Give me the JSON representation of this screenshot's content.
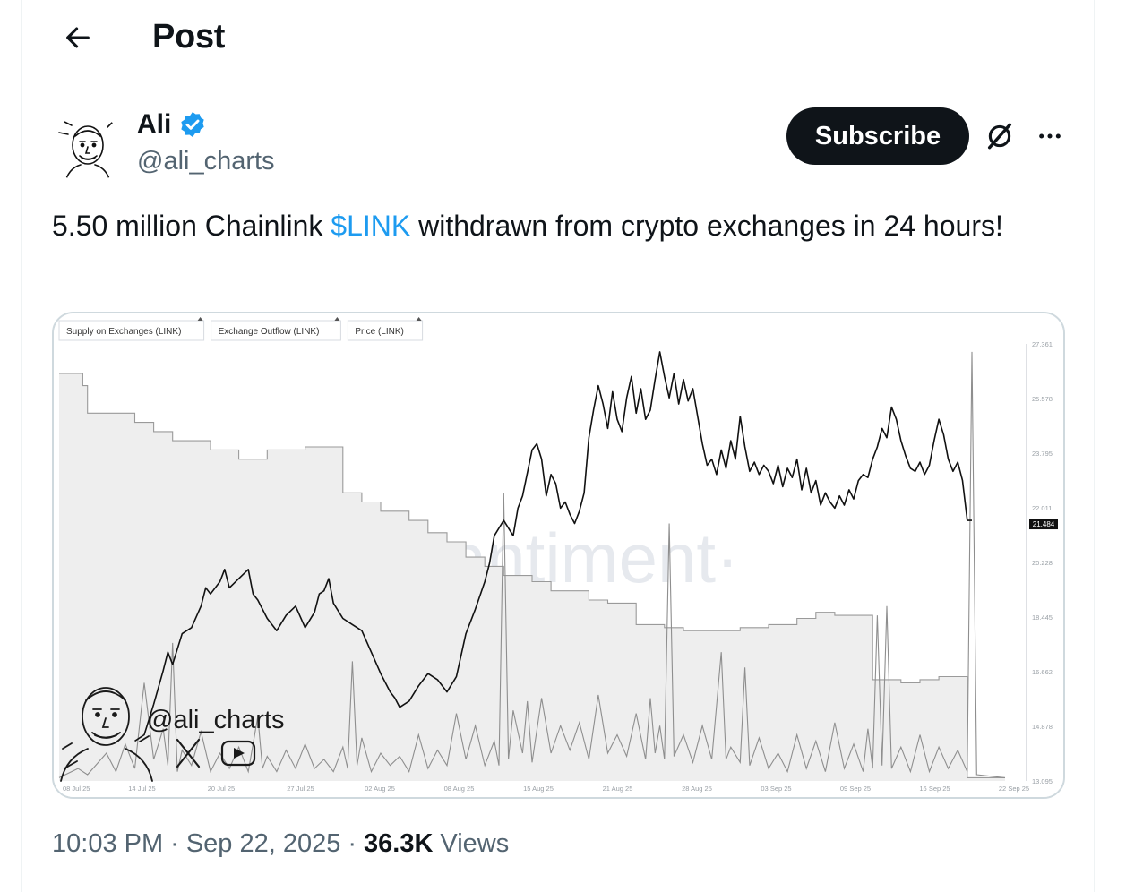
{
  "header": {
    "title": "Post",
    "back_icon": "arrow-left-icon"
  },
  "author": {
    "name": "Ali",
    "handle": "@ali_charts",
    "verified": true,
    "verified_color": "#1d9bf0",
    "subscribe_label": "Subscribe"
  },
  "tweet": {
    "text_before": "5.50 million Chainlink ",
    "cashtag": "$LINK",
    "text_after": " withdrawn from crypto exchanges in 24 hours!"
  },
  "meta": {
    "time": "10:03 PM",
    "date": "Sep 22, 2025",
    "views_count": "36.3K",
    "views_label": "Views"
  },
  "colors": {
    "accent": "#1d9bf0",
    "text": "#0f1419",
    "muted": "#536471",
    "border": "#cfd9de"
  },
  "chart_data": {
    "type": "line",
    "legend": [
      "Supply on Exchanges (LINK)",
      "Exchange Outflow (LINK)",
      "Price (LINK)"
    ],
    "watermark": "·santiment·",
    "overlay_handle": "@ali_charts",
    "x_ticks": [
      "08 Jul 25",
      "14 Jul 25",
      "20 Jul 25",
      "27 Jul 25",
      "02 Aug 25",
      "08 Aug 25",
      "15 Aug 25",
      "21 Aug 25",
      "28 Aug 25",
      "03 Sep 25",
      "09 Sep 25",
      "16 Sep 25",
      "22 Sep 25"
    ],
    "y_ticks": [
      "27.361",
      "25.578",
      "23.795",
      "22.011",
      "20.228",
      "18.445",
      "16.662",
      "14.878",
      "13.095"
    ],
    "ylim": [
      13.095,
      27.361
    ],
    "current_price": "21.484",
    "price": [
      [
        0.08,
        14.4
      ],
      [
        0.09,
        14.6
      ],
      [
        0.1,
        15.6
      ],
      [
        0.11,
        16.7
      ],
      [
        0.115,
        17.3
      ],
      [
        0.12,
        16.9
      ],
      [
        0.13,
        17.9
      ],
      [
        0.14,
        18.1
      ],
      [
        0.15,
        18.8
      ],
      [
        0.155,
        19.4
      ],
      [
        0.16,
        19.2
      ],
      [
        0.17,
        19.6
      ],
      [
        0.175,
        20.0
      ],
      [
        0.18,
        19.4
      ],
      [
        0.19,
        19.7
      ],
      [
        0.2,
        20.0
      ],
      [
        0.205,
        19.2
      ],
      [
        0.21,
        19.0
      ],
      [
        0.22,
        18.4
      ],
      [
        0.23,
        18.0
      ],
      [
        0.24,
        18.5
      ],
      [
        0.25,
        18.8
      ],
      [
        0.26,
        18.1
      ],
      [
        0.27,
        18.6
      ],
      [
        0.275,
        19.2
      ],
      [
        0.28,
        19.3
      ],
      [
        0.285,
        19.7
      ],
      [
        0.29,
        18.9
      ],
      [
        0.3,
        18.4
      ],
      [
        0.31,
        18.2
      ],
      [
        0.32,
        18.0
      ],
      [
        0.33,
        17.3
      ],
      [
        0.34,
        16.6
      ],
      [
        0.35,
        16.0
      ],
      [
        0.355,
        15.8
      ],
      [
        0.36,
        15.5
      ],
      [
        0.37,
        15.7
      ],
      [
        0.38,
        16.2
      ],
      [
        0.39,
        16.6
      ],
      [
        0.4,
        16.4
      ],
      [
        0.41,
        16.0
      ],
      [
        0.42,
        16.5
      ],
      [
        0.425,
        17.2
      ],
      [
        0.43,
        17.9
      ],
      [
        0.44,
        18.7
      ],
      [
        0.45,
        19.6
      ],
      [
        0.455,
        20.2
      ],
      [
        0.46,
        21.1
      ],
      [
        0.47,
        21.6
      ],
      [
        0.48,
        21.1
      ],
      [
        0.485,
        22.0
      ],
      [
        0.49,
        22.4
      ],
      [
        0.5,
        23.9
      ],
      [
        0.505,
        24.1
      ],
      [
        0.51,
        23.6
      ],
      [
        0.515,
        22.4
      ],
      [
        0.52,
        23.1
      ],
      [
        0.525,
        22.8
      ],
      [
        0.53,
        22.0
      ],
      [
        0.535,
        22.2
      ],
      [
        0.54,
        21.8
      ],
      [
        0.545,
        21.5
      ],
      [
        0.55,
        21.9
      ],
      [
        0.555,
        22.5
      ],
      [
        0.56,
        24.3
      ],
      [
        0.565,
        25.2
      ],
      [
        0.57,
        26.0
      ],
      [
        0.575,
        25.4
      ],
      [
        0.58,
        24.6
      ],
      [
        0.585,
        25.8
      ],
      [
        0.59,
        24.9
      ],
      [
        0.595,
        24.5
      ],
      [
        0.6,
        25.6
      ],
      [
        0.605,
        26.3
      ],
      [
        0.61,
        25.1
      ],
      [
        0.615,
        25.9
      ],
      [
        0.62,
        24.9
      ],
      [
        0.625,
        25.2
      ],
      [
        0.63,
        26.2
      ],
      [
        0.635,
        27.1
      ],
      [
        0.64,
        26.3
      ],
      [
        0.645,
        25.6
      ],
      [
        0.65,
        26.4
      ],
      [
        0.655,
        25.4
      ],
      [
        0.66,
        26.2
      ],
      [
        0.665,
        25.5
      ],
      [
        0.67,
        25.9
      ],
      [
        0.675,
        25.0
      ],
      [
        0.68,
        24.1
      ],
      [
        0.685,
        23.4
      ],
      [
        0.69,
        23.6
      ],
      [
        0.695,
        23.1
      ],
      [
        0.7,
        23.9
      ],
      [
        0.705,
        23.3
      ],
      [
        0.71,
        24.2
      ],
      [
        0.715,
        23.6
      ],
      [
        0.72,
        25.0
      ],
      [
        0.725,
        24.0
      ],
      [
        0.73,
        23.2
      ],
      [
        0.735,
        23.5
      ],
      [
        0.74,
        23.1
      ],
      [
        0.745,
        23.4
      ],
      [
        0.75,
        23.2
      ],
      [
        0.755,
        22.8
      ],
      [
        0.76,
        23.4
      ],
      [
        0.765,
        22.7
      ],
      [
        0.77,
        23.3
      ],
      [
        0.775,
        23.0
      ],
      [
        0.78,
        23.6
      ],
      [
        0.785,
        22.6
      ],
      [
        0.79,
        23.3
      ],
      [
        0.795,
        22.5
      ],
      [
        0.8,
        22.9
      ],
      [
        0.805,
        22.1
      ],
      [
        0.81,
        22.5
      ],
      [
        0.815,
        22.2
      ],
      [
        0.82,
        22.0
      ],
      [
        0.825,
        22.4
      ],
      [
        0.83,
        22.1
      ],
      [
        0.835,
        22.6
      ],
      [
        0.84,
        22.3
      ],
      [
        0.845,
        22.9
      ],
      [
        0.85,
        23.1
      ],
      [
        0.855,
        23.0
      ],
      [
        0.86,
        23.6
      ],
      [
        0.865,
        24.0
      ],
      [
        0.87,
        24.6
      ],
      [
        0.875,
        24.3
      ],
      [
        0.88,
        25.3
      ],
      [
        0.885,
        24.9
      ],
      [
        0.89,
        24.2
      ],
      [
        0.895,
        23.7
      ],
      [
        0.9,
        23.3
      ],
      [
        0.905,
        23.2
      ],
      [
        0.91,
        23.5
      ],
      [
        0.915,
        23.1
      ],
      [
        0.92,
        23.4
      ],
      [
        0.925,
        24.2
      ],
      [
        0.93,
        24.9
      ],
      [
        0.935,
        24.4
      ],
      [
        0.94,
        23.6
      ],
      [
        0.945,
        23.2
      ],
      [
        0.95,
        23.5
      ],
      [
        0.955,
        22.9
      ],
      [
        0.96,
        21.6
      ],
      [
        0.965,
        21.6
      ]
    ],
    "supply": [
      [
        0.0,
        26.4
      ],
      [
        0.025,
        26.4
      ],
      [
        0.025,
        26.0
      ],
      [
        0.03,
        26.0
      ],
      [
        0.03,
        25.1
      ],
      [
        0.08,
        25.1
      ],
      [
        0.08,
        24.8
      ],
      [
        0.1,
        24.8
      ],
      [
        0.1,
        24.5
      ],
      [
        0.12,
        24.5
      ],
      [
        0.12,
        24.2
      ],
      [
        0.16,
        24.2
      ],
      [
        0.16,
        23.9
      ],
      [
        0.19,
        23.9
      ],
      [
        0.19,
        23.6
      ],
      [
        0.22,
        23.6
      ],
      [
        0.22,
        23.9
      ],
      [
        0.26,
        23.9
      ],
      [
        0.26,
        24.0
      ],
      [
        0.3,
        24.0
      ],
      [
        0.3,
        22.5
      ],
      [
        0.32,
        22.5
      ],
      [
        0.32,
        22.2
      ],
      [
        0.34,
        22.2
      ],
      [
        0.34,
        21.9
      ],
      [
        0.37,
        21.9
      ],
      [
        0.37,
        21.6
      ],
      [
        0.39,
        21.6
      ],
      [
        0.39,
        21.2
      ],
      [
        0.41,
        21.2
      ],
      [
        0.41,
        20.9
      ],
      [
        0.43,
        20.9
      ],
      [
        0.43,
        20.4
      ],
      [
        0.45,
        20.4
      ],
      [
        0.45,
        20.1
      ],
      [
        0.47,
        20.1
      ],
      [
        0.47,
        19.8
      ],
      [
        0.5,
        19.8
      ],
      [
        0.5,
        19.6
      ],
      [
        0.52,
        19.6
      ],
      [
        0.52,
        19.3
      ],
      [
        0.56,
        19.3
      ],
      [
        0.56,
        19.0
      ],
      [
        0.58,
        19.0
      ],
      [
        0.58,
        18.9
      ],
      [
        0.61,
        18.9
      ],
      [
        0.61,
        18.2
      ],
      [
        0.64,
        18.2
      ],
      [
        0.64,
        18.1
      ],
      [
        0.66,
        18.1
      ],
      [
        0.66,
        18.0
      ],
      [
        0.72,
        18.0
      ],
      [
        0.72,
        18.1
      ],
      [
        0.75,
        18.1
      ],
      [
        0.75,
        18.2
      ],
      [
        0.78,
        18.2
      ],
      [
        0.78,
        18.4
      ],
      [
        0.8,
        18.4
      ],
      [
        0.8,
        18.6
      ],
      [
        0.82,
        18.6
      ],
      [
        0.82,
        18.5
      ],
      [
        0.86,
        18.5
      ],
      [
        0.86,
        16.4
      ],
      [
        0.89,
        16.4
      ],
      [
        0.89,
        16.3
      ],
      [
        0.91,
        16.3
      ],
      [
        0.91,
        16.4
      ],
      [
        0.93,
        16.4
      ],
      [
        0.93,
        16.5
      ],
      [
        0.96,
        16.5
      ],
      [
        0.96,
        13.2
      ],
      [
        1.0,
        13.2
      ]
    ],
    "outflow": [
      [
        0.0,
        13.2
      ],
      [
        0.02,
        13.5
      ],
      [
        0.03,
        13.3
      ],
      [
        0.05,
        14.0
      ],
      [
        0.06,
        13.4
      ],
      [
        0.07,
        14.3
      ],
      [
        0.08,
        13.5
      ],
      [
        0.09,
        16.3
      ],
      [
        0.1,
        13.8
      ],
      [
        0.11,
        14.8
      ],
      [
        0.115,
        13.6
      ],
      [
        0.12,
        17.6
      ],
      [
        0.125,
        13.4
      ],
      [
        0.13,
        14.1
      ],
      [
        0.14,
        13.6
      ],
      [
        0.15,
        14.7
      ],
      [
        0.16,
        13.4
      ],
      [
        0.17,
        14.0
      ],
      [
        0.18,
        13.5
      ],
      [
        0.19,
        14.2
      ],
      [
        0.2,
        13.4
      ],
      [
        0.21,
        15.2
      ],
      [
        0.215,
        13.5
      ],
      [
        0.22,
        13.9
      ],
      [
        0.23,
        13.4
      ],
      [
        0.24,
        14.1
      ],
      [
        0.25,
        13.5
      ],
      [
        0.26,
        14.3
      ],
      [
        0.27,
        13.5
      ],
      [
        0.28,
        13.8
      ],
      [
        0.29,
        13.4
      ],
      [
        0.3,
        14.2
      ],
      [
        0.305,
        13.5
      ],
      [
        0.31,
        17.0
      ],
      [
        0.315,
        13.6
      ],
      [
        0.32,
        14.5
      ],
      [
        0.33,
        13.4
      ],
      [
        0.34,
        14.0
      ],
      [
        0.35,
        13.6
      ],
      [
        0.36,
        13.9
      ],
      [
        0.37,
        13.4
      ],
      [
        0.38,
        14.6
      ],
      [
        0.39,
        13.5
      ],
      [
        0.4,
        14.1
      ],
      [
        0.41,
        13.6
      ],
      [
        0.42,
        15.3
      ],
      [
        0.43,
        13.8
      ],
      [
        0.44,
        14.9
      ],
      [
        0.45,
        13.6
      ],
      [
        0.46,
        14.4
      ],
      [
        0.465,
        13.6
      ],
      [
        0.47,
        22.5
      ],
      [
        0.475,
        13.8
      ],
      [
        0.48,
        15.4
      ],
      [
        0.49,
        14.0
      ],
      [
        0.495,
        15.7
      ],
      [
        0.5,
        13.7
      ],
      [
        0.51,
        15.8
      ],
      [
        0.52,
        14.0
      ],
      [
        0.53,
        14.9
      ],
      [
        0.54,
        14.1
      ],
      [
        0.55,
        15.0
      ],
      [
        0.56,
        13.8
      ],
      [
        0.57,
        15.9
      ],
      [
        0.58,
        14.0
      ],
      [
        0.59,
        14.6
      ],
      [
        0.6,
        13.9
      ],
      [
        0.61,
        15.3
      ],
      [
        0.62,
        13.8
      ],
      [
        0.625,
        15.8
      ],
      [
        0.63,
        14.0
      ],
      [
        0.635,
        14.9
      ],
      [
        0.64,
        13.8
      ],
      [
        0.645,
        21.5
      ],
      [
        0.65,
        13.9
      ],
      [
        0.66,
        14.6
      ],
      [
        0.67,
        13.7
      ],
      [
        0.68,
        14.9
      ],
      [
        0.69,
        13.8
      ],
      [
        0.7,
        17.3
      ],
      [
        0.705,
        13.8
      ],
      [
        0.71,
        14.2
      ],
      [
        0.72,
        13.7
      ],
      [
        0.725,
        16.8
      ],
      [
        0.73,
        13.6
      ],
      [
        0.74,
        14.5
      ],
      [
        0.75,
        13.5
      ],
      [
        0.76,
        14.0
      ],
      [
        0.77,
        13.4
      ],
      [
        0.78,
        14.6
      ],
      [
        0.79,
        13.5
      ],
      [
        0.8,
        14.4
      ],
      [
        0.81,
        13.4
      ],
      [
        0.82,
        15.0
      ],
      [
        0.83,
        13.5
      ],
      [
        0.84,
        14.3
      ],
      [
        0.85,
        13.4
      ],
      [
        0.855,
        14.8
      ],
      [
        0.86,
        13.5
      ],
      [
        0.865,
        18.5
      ],
      [
        0.87,
        13.6
      ],
      [
        0.875,
        18.8
      ],
      [
        0.88,
        13.5
      ],
      [
        0.89,
        14.2
      ],
      [
        0.9,
        13.4
      ],
      [
        0.91,
        14.6
      ],
      [
        0.92,
        13.4
      ],
      [
        0.93,
        14.2
      ],
      [
        0.94,
        13.5
      ],
      [
        0.95,
        14.1
      ],
      [
        0.96,
        13.4
      ],
      [
        0.965,
        27.1
      ],
      [
        0.97,
        13.3
      ],
      [
        1.0,
        13.2
      ]
    ]
  }
}
